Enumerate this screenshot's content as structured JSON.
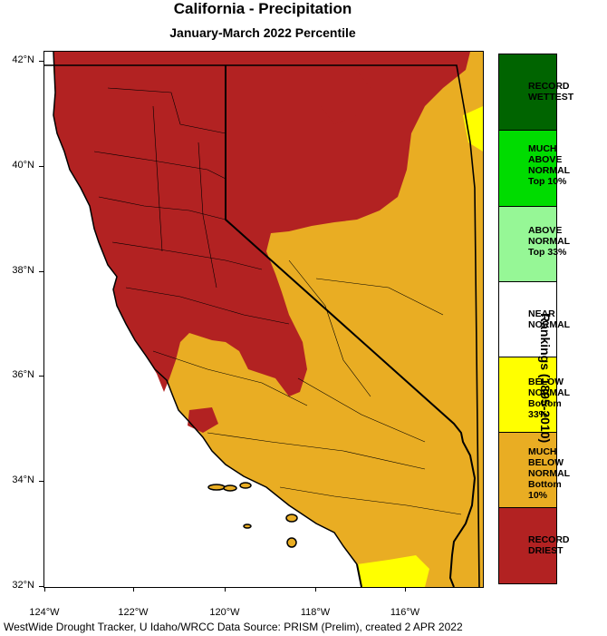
{
  "header": {
    "title": "California - Precipitation",
    "subtitle": "January-March 2022 Percentile"
  },
  "axes": {
    "latitudes": [
      "42°N",
      "40°N",
      "38°N",
      "36°N",
      "34°N",
      "32°N"
    ],
    "longitudes": [
      "124°W",
      "122°W",
      "120°W",
      "118°W",
      "116°W"
    ]
  },
  "legend": {
    "title": "Rankings (1895-2010)",
    "categories": [
      {
        "label_lines": [
          "RECORD",
          "WETTEST"
        ],
        "color": "#006400"
      },
      {
        "label_lines": [
          "MUCH",
          "ABOVE",
          "NORMAL",
          "Top 10%"
        ],
        "color": "#00dc00"
      },
      {
        "label_lines": [
          "ABOVE",
          "NORMAL",
          "Top 33%"
        ],
        "color": "#96f796"
      },
      {
        "label_lines": [
          "NEAR",
          "NORMAL"
        ],
        "color": "#ffffff"
      },
      {
        "label_lines": [
          "BELOW",
          "NORMAL",
          "Bottom 33%"
        ],
        "color": "#ffff00"
      },
      {
        "label_lines": [
          "MUCH",
          "BELOW",
          "NORMAL",
          "Bottom 10%"
        ],
        "color": "#e9ad23"
      },
      {
        "label_lines": [
          "RECORD",
          "DRIEST"
        ],
        "color": "#b22222"
      }
    ]
  },
  "footer": {
    "credit": "WestWide Drought Tracker, U Idaho/WRCC Data Source: PRISM (Prelim), created  2 APR 2022"
  }
}
